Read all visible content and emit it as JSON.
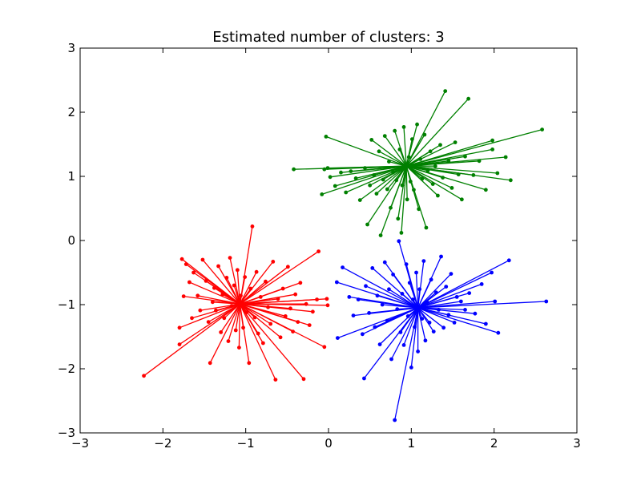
{
  "chart_data": {
    "type": "scatter",
    "title": "Estimated number of clusters: 3",
    "xlabel": "",
    "ylabel": "",
    "xlim": [
      -3,
      3
    ],
    "ylim": [
      -3,
      3
    ],
    "xticks": [
      "−3",
      "−2",
      "−1",
      "0",
      "1",
      "2",
      "3"
    ],
    "yticks": [
      "−3",
      "−2",
      "−1",
      "0",
      "1",
      "2",
      "3"
    ],
    "grid": false,
    "legend": "none",
    "style": "each cluster member connected by a line to its cluster center",
    "series": [
      {
        "color": "#ff0000",
        "center": [
          -1.07,
          -0.99
        ],
        "points": [
          [
            -2.23,
            -2.11
          ],
          [
            -1.8,
            -1.62
          ],
          [
            -1.75,
            -0.87
          ],
          [
            -1.8,
            -1.36
          ],
          [
            -1.77,
            -0.29
          ],
          [
            -1.72,
            -0.37
          ],
          [
            -1.68,
            -0.65
          ],
          [
            -1.65,
            -1.21
          ],
          [
            -1.63,
            -0.5
          ],
          [
            -1.58,
            -0.86
          ],
          [
            -1.55,
            -1.09
          ],
          [
            -1.52,
            -0.3
          ],
          [
            -1.48,
            -0.63
          ],
          [
            -1.45,
            -1.27
          ],
          [
            -1.43,
            -1.91
          ],
          [
            -1.4,
            -0.96
          ],
          [
            -1.38,
            -0.74
          ],
          [
            -1.36,
            -1.09
          ],
          [
            -1.33,
            -0.4
          ],
          [
            -1.3,
            -1.43
          ],
          [
            -1.28,
            -0.84
          ],
          [
            -1.26,
            -1.21
          ],
          [
            -1.23,
            -0.58
          ],
          [
            -1.21,
            -1.57
          ],
          [
            -1.19,
            -0.27
          ],
          [
            -1.17,
            -1.02
          ],
          [
            -1.14,
            -0.7
          ],
          [
            -1.12,
            -1.4
          ],
          [
            -1.1,
            -0.46
          ],
          [
            -1.08,
            -1.67
          ],
          [
            -1.06,
            -0.86
          ],
          [
            -1.03,
            -1.36
          ],
          [
            -1.01,
            -0.57
          ],
          [
            -0.99,
            -1.12
          ],
          [
            -0.96,
            -1.91
          ],
          [
            -0.94,
            -0.75
          ],
          [
            -0.92,
            0.22
          ],
          [
            -0.89,
            -1.2
          ],
          [
            -0.87,
            -0.49
          ],
          [
            -0.85,
            -1.45
          ],
          [
            -0.82,
            -0.88
          ],
          [
            -0.79,
            -1.6
          ],
          [
            -0.76,
            -0.64
          ],
          [
            -0.73,
            -1.04
          ],
          [
            -0.7,
            -1.3
          ],
          [
            -0.67,
            -0.33
          ],
          [
            -0.64,
            -2.17
          ],
          [
            -0.61,
            -0.91
          ],
          [
            -0.58,
            -1.51
          ],
          [
            -0.55,
            -0.75
          ],
          [
            -0.52,
            -1.18
          ],
          [
            -0.49,
            -0.41
          ],
          [
            -0.46,
            -1.06
          ],
          [
            -0.43,
            -1.42
          ],
          [
            -0.4,
            -0.84
          ],
          [
            -0.37,
            -1.27
          ],
          [
            -0.34,
            -0.66
          ],
          [
            -0.3,
            -2.16
          ],
          [
            -0.27,
            -0.99
          ],
          [
            -0.23,
            -1.32
          ],
          [
            -0.19,
            -1.11
          ],
          [
            -0.14,
            -0.92
          ],
          [
            -0.12,
            -0.17
          ],
          [
            -0.05,
            -1.66
          ],
          [
            -0.01,
            -1.01
          ],
          [
            -0.02,
            -0.91
          ]
        ]
      },
      {
        "color": "#008000",
        "center": [
          0.94,
          1.16
        ],
        "points": [
          [
            -0.42,
            1.11
          ],
          [
            -0.08,
            0.72
          ],
          [
            -0.05,
            1.11
          ],
          [
            -0.03,
            1.62
          ],
          [
            -0.01,
            1.13
          ],
          [
            0.02,
            0.99
          ],
          [
            0.08,
            0.85
          ],
          [
            0.15,
            1.06
          ],
          [
            0.21,
            0.75
          ],
          [
            0.27,
            1.08
          ],
          [
            0.33,
            0.97
          ],
          [
            0.38,
            0.63
          ],
          [
            0.44,
            1.13
          ],
          [
            0.47,
            0.25
          ],
          [
            0.5,
            0.86
          ],
          [
            0.52,
            1.57
          ],
          [
            0.55,
            1.02
          ],
          [
            0.58,
            0.73
          ],
          [
            0.61,
            1.39
          ],
          [
            0.63,
            0.08
          ],
          [
            0.66,
            0.95
          ],
          [
            0.68,
            1.63
          ],
          [
            0.71,
            0.8
          ],
          [
            0.73,
            1.23
          ],
          [
            0.75,
            0.51
          ],
          [
            0.78,
            1.06
          ],
          [
            0.8,
            1.71
          ],
          [
            0.82,
            0.94
          ],
          [
            0.84,
            0.34
          ],
          [
            0.86,
            1.42
          ],
          [
            0.88,
            0.12
          ],
          [
            0.89,
            0.86
          ],
          [
            0.91,
            1.77
          ],
          [
            0.93,
            1.11
          ],
          [
            0.95,
            0.64
          ],
          [
            0.97,
            1.3
          ],
          [
            0.99,
            0.92
          ],
          [
            1.01,
            1.58
          ],
          [
            1.03,
            0.79
          ],
          [
            1.05,
            1.15
          ],
          [
            1.07,
            1.81
          ],
          [
            1.09,
            0.49
          ],
          [
            1.11,
            1.27
          ],
          [
            1.13,
            0.96
          ],
          [
            1.16,
            1.65
          ],
          [
            1.18,
            0.2
          ],
          [
            1.2,
            1.09
          ],
          [
            1.23,
            1.39
          ],
          [
            1.26,
            0.88
          ],
          [
            1.29,
            1.16
          ],
          [
            1.32,
            0.7
          ],
          [
            1.35,
            1.49
          ],
          [
            1.38,
            0.98
          ],
          [
            1.41,
            2.33
          ],
          [
            1.45,
            1.24
          ],
          [
            1.49,
            0.82
          ],
          [
            1.53,
            1.53
          ],
          [
            1.57,
            1.03
          ],
          [
            1.61,
            0.64
          ],
          [
            1.65,
            1.31
          ],
          [
            1.69,
            2.21
          ],
          [
            1.75,
            1.02
          ],
          [
            1.82,
            1.24
          ],
          [
            1.9,
            0.79
          ],
          [
            1.98,
            1.56
          ],
          [
            1.98,
            1.42
          ],
          [
            2.04,
            1.05
          ],
          [
            2.14,
            1.3
          ],
          [
            2.2,
            0.94
          ],
          [
            2.58,
            1.73
          ]
        ]
      },
      {
        "color": "#0000ff",
        "center": [
          1.08,
          -1.05
        ],
        "points": [
          [
            0.11,
            -1.52
          ],
          [
            0.1,
            -0.65
          ],
          [
            0.17,
            -0.42
          ],
          [
            0.25,
            -0.88
          ],
          [
            0.3,
            -1.17
          ],
          [
            0.36,
            -0.92
          ],
          [
            0.41,
            -1.46
          ],
          [
            0.43,
            -2.15
          ],
          [
            0.45,
            -0.71
          ],
          [
            0.49,
            -1.13
          ],
          [
            0.53,
            -0.43
          ],
          [
            0.56,
            -1.35
          ],
          [
            0.59,
            -0.86
          ],
          [
            0.62,
            -1.62
          ],
          [
            0.65,
            -1.0
          ],
          [
            0.68,
            -0.34
          ],
          [
            0.71,
            -1.25
          ],
          [
            0.73,
            -0.76
          ],
          [
            0.76,
            -1.85
          ],
          [
            0.78,
            -0.53
          ],
          [
            0.8,
            -2.8
          ],
          [
            0.83,
            -1.07
          ],
          [
            0.85,
            -0.01
          ],
          [
            0.87,
            -1.43
          ],
          [
            0.89,
            -0.83
          ],
          [
            0.91,
            -1.63
          ],
          [
            0.94,
            -0.37
          ],
          [
            0.96,
            -1.18
          ],
          [
            0.98,
            -0.66
          ],
          [
            1.0,
            -1.98
          ],
          [
            1.02,
            -0.92
          ],
          [
            1.04,
            -1.35
          ],
          [
            1.06,
            -0.5
          ],
          [
            1.08,
            -1.73
          ],
          [
            1.1,
            -0.76
          ],
          [
            1.13,
            -1.22
          ],
          [
            1.15,
            -0.32
          ],
          [
            1.17,
            -1.56
          ],
          [
            1.19,
            -0.96
          ],
          [
            1.22,
            -1.28
          ],
          [
            1.24,
            -0.61
          ],
          [
            1.27,
            -1.42
          ],
          [
            1.3,
            -0.81
          ],
          [
            1.33,
            -1.08
          ],
          [
            1.36,
            -0.25
          ],
          [
            1.39,
            -1.36
          ],
          [
            1.42,
            -0.72
          ],
          [
            1.45,
            -1.16
          ],
          [
            1.48,
            -0.52
          ],
          [
            1.52,
            -1.28
          ],
          [
            1.55,
            -0.88
          ],
          [
            1.6,
            -0.95
          ],
          [
            1.65,
            -1.08
          ],
          [
            1.7,
            -0.82
          ],
          [
            1.77,
            -1.14
          ],
          [
            1.85,
            -0.68
          ],
          [
            1.9,
            -1.3
          ],
          [
            1.97,
            -0.5
          ],
          [
            2.05,
            -1.44
          ],
          [
            2.18,
            -0.31
          ],
          [
            2.63,
            -0.95
          ],
          [
            2.01,
            -0.95
          ]
        ]
      }
    ]
  }
}
